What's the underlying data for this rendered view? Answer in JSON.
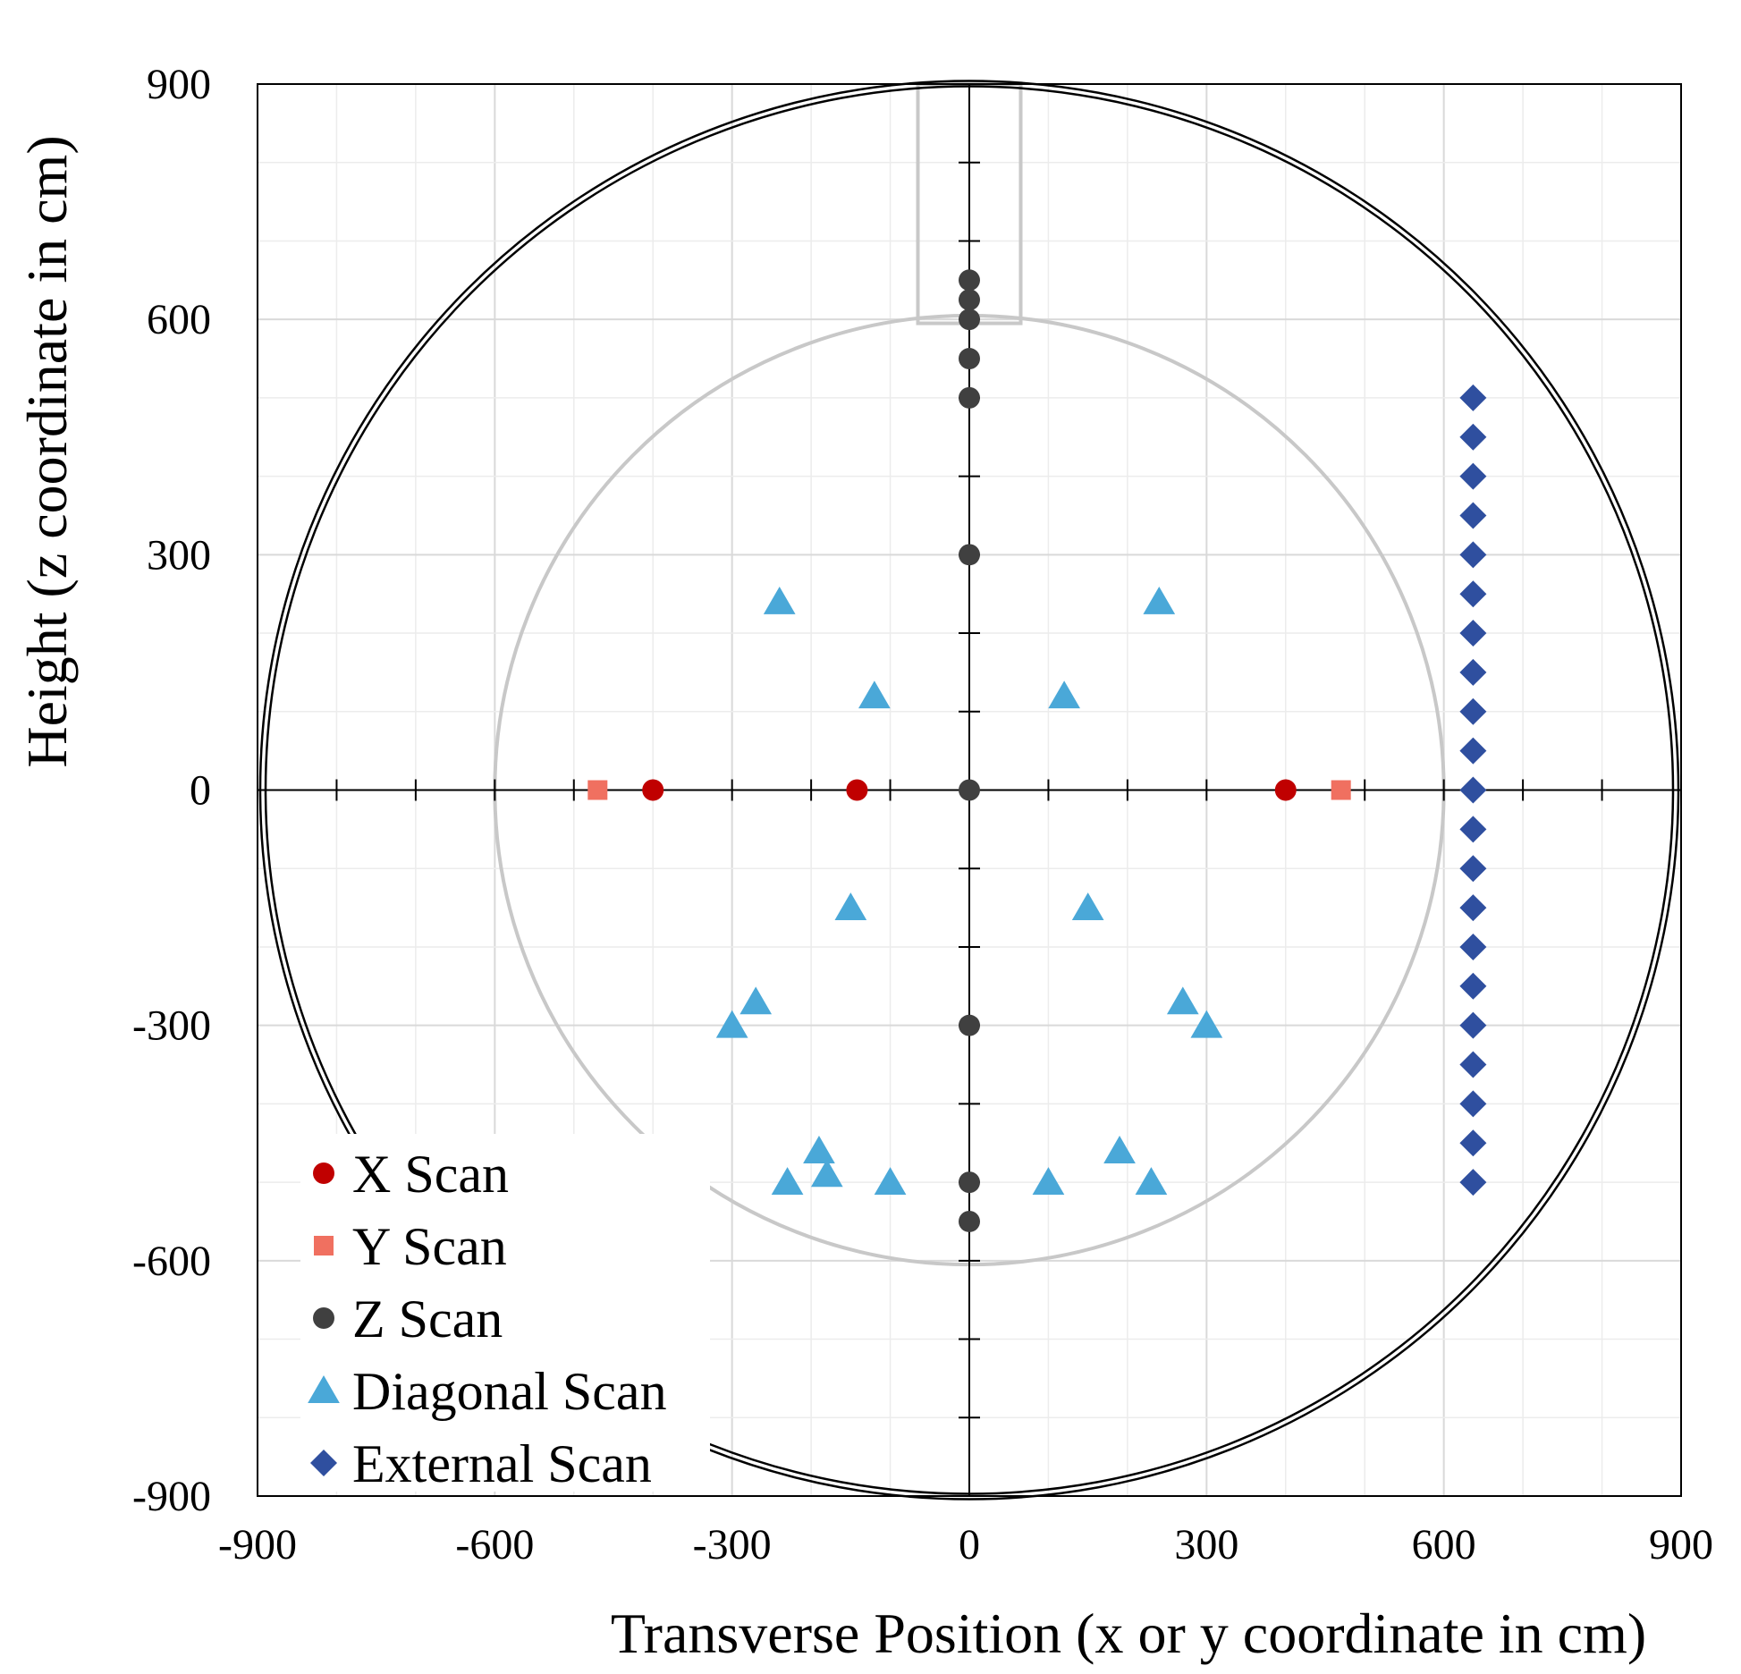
{
  "chart_data": {
    "type": "scatter",
    "title": "",
    "xlabel": "Transverse Position (x or y coordinate in cm)",
    "ylabel": "Height (z coordinate in cm)",
    "xlim": [
      -900,
      900
    ],
    "ylim": [
      -900,
      900
    ],
    "xticks": [
      -900,
      -600,
      -300,
      0,
      300,
      600,
      900
    ],
    "yticks": [
      -900,
      -600,
      -300,
      0,
      300,
      600,
      900
    ],
    "xtick_labels": [
      "-900",
      "-600",
      "-300",
      "0",
      "300",
      "600",
      "900"
    ],
    "ytick_labels": [
      "-900",
      "-600",
      "-300",
      "0",
      "300",
      "600",
      "900"
    ],
    "grid": true,
    "minor_grid_step": 100,
    "legend_position": "bottom-left",
    "colors": {
      "x_scan": "#c00000",
      "y_scan": "#f07060",
      "z_scan": "#404040",
      "diagonal_scan": "#4aa8d8",
      "external_scan": "#2f4f9f",
      "outer_circle": "#000000",
      "inner_circle": "#c8c8c8",
      "grid": "#d9d9d9",
      "minor_grid": "#ececec"
    },
    "reference_shapes": {
      "outer_circle_radius": 900,
      "inner_circle_radius": 600,
      "neck_half_width": 65,
      "neck_bottom": 595,
      "neck_top": 900
    },
    "series": [
      {
        "name": "X Scan",
        "marker": "circle",
        "color": "#c00000",
        "points": [
          [
            -400,
            0
          ],
          [
            -142,
            0
          ],
          [
            400,
            0
          ]
        ]
      },
      {
        "name": "Y Scan",
        "marker": "square",
        "color": "#f07060",
        "points": [
          [
            -470,
            0
          ],
          [
            470,
            0
          ]
        ]
      },
      {
        "name": "Z Scan",
        "marker": "circle",
        "color": "#404040",
        "points": [
          [
            0,
            650
          ],
          [
            0,
            625
          ],
          [
            0,
            600
          ],
          [
            0,
            550
          ],
          [
            0,
            500
          ],
          [
            0,
            300
          ],
          [
            0,
            0
          ],
          [
            0,
            -300
          ],
          [
            0,
            -500
          ],
          [
            0,
            -550
          ]
        ]
      },
      {
        "name": "Diagonal Scan",
        "marker": "triangle",
        "color": "#4aa8d8",
        "points": [
          [
            -240,
            240
          ],
          [
            240,
            240
          ],
          [
            -120,
            120
          ],
          [
            120,
            120
          ],
          [
            -150,
            -150
          ],
          [
            150,
            -150
          ],
          [
            -270,
            -270
          ],
          [
            270,
            -270
          ],
          [
            -300,
            -300
          ],
          [
            300,
            -300
          ],
          [
            -190,
            -460
          ],
          [
            190,
            -460
          ],
          [
            -230,
            -500
          ],
          [
            230,
            -500
          ],
          [
            -180,
            -490
          ],
          [
            -100,
            -500
          ],
          [
            100,
            -500
          ]
        ]
      },
      {
        "name": "External Scan",
        "marker": "diamond",
        "color": "#2f4f9f",
        "points": [
          [
            637,
            500
          ],
          [
            637,
            450
          ],
          [
            637,
            400
          ],
          [
            637,
            350
          ],
          [
            637,
            300
          ],
          [
            637,
            250
          ],
          [
            637,
            200
          ],
          [
            637,
            150
          ],
          [
            637,
            100
          ],
          [
            637,
            50
          ],
          [
            637,
            0
          ],
          [
            637,
            -50
          ],
          [
            637,
            -100
          ],
          [
            637,
            -150
          ],
          [
            637,
            -200
          ],
          [
            637,
            -250
          ],
          [
            637,
            -300
          ],
          [
            637,
            -350
          ],
          [
            637,
            -400
          ],
          [
            637,
            -450
          ],
          [
            637,
            -500
          ]
        ]
      }
    ],
    "legend": [
      {
        "label": "X Scan",
        "marker": "circle",
        "color": "#c00000"
      },
      {
        "label": "Y Scan",
        "marker": "square",
        "color": "#f07060"
      },
      {
        "label": "Z Scan",
        "marker": "circle",
        "color": "#404040"
      },
      {
        "label": "Diagonal Scan",
        "marker": "triangle",
        "color": "#4aa8d8"
      },
      {
        "label": "External Scan",
        "marker": "diamond",
        "color": "#2f4f9f"
      }
    ]
  }
}
